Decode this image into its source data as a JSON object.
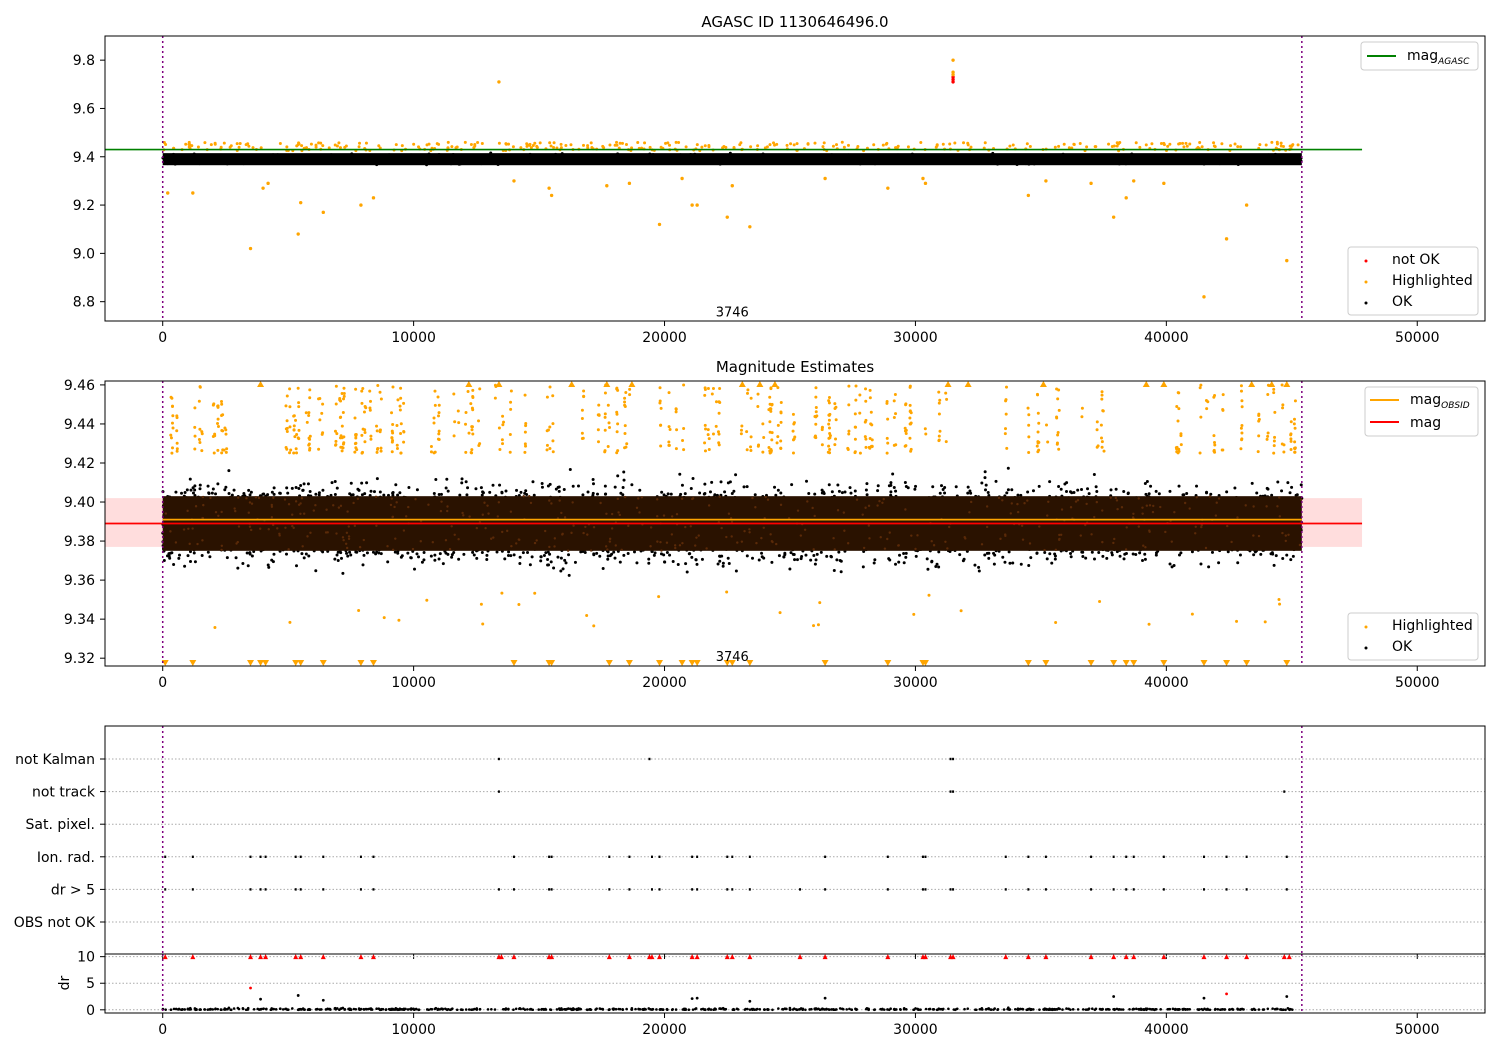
{
  "chart_data": [
    {
      "type": "scatter",
      "title": "AGASC ID 1130646496.0",
      "xlim": [
        -2300,
        52700
      ],
      "ylim": [
        8.72,
        9.9
      ],
      "xticks": [
        0,
        10000,
        20000,
        30000,
        40000,
        50000
      ],
      "yticks": [
        8.8,
        9.0,
        9.2,
        9.4,
        9.6,
        9.8
      ],
      "vlines": [
        0,
        45400
      ],
      "hlines": [
        {
          "name": "mag",
          "sub": "AGASC",
          "y": 9.43,
          "x": [
            -2300,
            47800
          ],
          "color": "#008000"
        }
      ],
      "annotations": [
        {
          "text": "3746",
          "x": 22700,
          "y": 8.76
        }
      ],
      "ok_band": {
        "x": [
          0,
          45400
        ],
        "y": [
          9.365,
          9.415
        ]
      },
      "series": [
        {
          "name": "not OK",
          "color": "#ff0000",
          "points": [
            [
              31500,
              9.71
            ],
            [
              31500,
              9.72
            ],
            [
              31500,
              9.73
            ]
          ]
        },
        {
          "name": "Highlighted",
          "color": "#ffa500",
          "points": [
            [
              13400,
              9.71
            ],
            [
              31500,
              9.8
            ],
            [
              31500,
              9.74
            ],
            [
              31500,
              9.75
            ],
            [
              200,
              9.25
            ],
            [
              1200,
              9.25
            ],
            [
              3500,
              9.02
            ],
            [
              4000,
              9.27
            ],
            [
              4200,
              9.29
            ],
            [
              5400,
              9.08
            ],
            [
              5500,
              9.21
            ],
            [
              6400,
              9.17
            ],
            [
              7900,
              9.2
            ],
            [
              8400,
              9.23
            ],
            [
              14000,
              9.3
            ],
            [
              15400,
              9.27
            ],
            [
              15500,
              9.24
            ],
            [
              17700,
              9.28
            ],
            [
              18600,
              9.29
            ],
            [
              19800,
              9.12
            ],
            [
              20700,
              9.31
            ],
            [
              21100,
              9.2
            ],
            [
              21300,
              9.2
            ],
            [
              22500,
              9.15
            ],
            [
              22700,
              9.28
            ],
            [
              23400,
              9.11
            ],
            [
              26400,
              9.31
            ],
            [
              28900,
              9.27
            ],
            [
              30300,
              9.31
            ],
            [
              30400,
              9.29
            ],
            [
              34500,
              9.24
            ],
            [
              35200,
              9.3
            ],
            [
              37000,
              9.29
            ],
            [
              37900,
              9.15
            ],
            [
              38400,
              9.23
            ],
            [
              38700,
              9.3
            ],
            [
              39900,
              9.29
            ],
            [
              41500,
              8.82
            ],
            [
              42400,
              9.06
            ],
            [
              43200,
              9.2
            ],
            [
              44800,
              8.97
            ]
          ]
        },
        {
          "name": "OK",
          "color": "#000000",
          "points": []
        }
      ],
      "legend": {
        "upper": "upper right",
        "lower": "lower right"
      }
    },
    {
      "type": "scatter",
      "title": "Magnitude Estimates",
      "xlim": [
        -2300,
        52700
      ],
      "ylim": [
        9.316,
        9.462
      ],
      "xticks": [
        0,
        10000,
        20000,
        30000,
        40000,
        50000
      ],
      "yticks": [
        9.32,
        9.34,
        9.36,
        9.38,
        9.4,
        9.42,
        9.44,
        9.46
      ],
      "vlines": [
        0,
        45400
      ],
      "hlines": [
        {
          "name": "mag",
          "sub": "OBSID",
          "y": 9.391,
          "x": [
            0,
            45400
          ],
          "color": "#ffa500"
        },
        {
          "name": "mag",
          "sub": "",
          "y": 9.389,
          "x": [
            -2300,
            47800
          ],
          "color": "#ff0000"
        }
      ],
      "band": {
        "y": [
          9.377,
          9.402
        ],
        "x": [
          -2300,
          47800
        ],
        "color": "#ffdddd"
      },
      "annotations": [
        {
          "text": "3746",
          "x": 22700,
          "y": 9.321
        }
      ],
      "ok_band": {
        "x": [
          0,
          45400
        ],
        "y": [
          9.352,
          9.424
        ],
        "core": [
          9.375,
          9.403
        ]
      },
      "highlight_band": {
        "y": [
          9.425,
          9.46
        ]
      },
      "series": [
        {
          "name": "Highlighted",
          "color": "#ffa500"
        },
        {
          "name": "OK",
          "color": "#000000"
        }
      ],
      "clipped_low_markers_x": [
        100,
        1200,
        3500,
        3900,
        4100,
        5300,
        5500,
        6400,
        7900,
        8400,
        14000,
        15400,
        15500,
        17800,
        18600,
        19800,
        20700,
        21100,
        21300,
        22500,
        22700,
        23400,
        26400,
        28900,
        30300,
        30400,
        34500,
        35200,
        37000,
        37900,
        38400,
        38700,
        39900,
        41500,
        42400,
        43200,
        44800
      ],
      "clipped_high_markers_x": [
        3900,
        12200,
        13400,
        16300,
        17700,
        18700,
        23100,
        23800,
        24400,
        31300,
        32100,
        35100,
        39200,
        39900,
        43400,
        44200,
        44800
      ],
      "legend": {
        "upper": "upper right",
        "lower": "lower right"
      }
    },
    {
      "type": "scatter",
      "xlim": [
        -2300,
        52700
      ],
      "categories": [
        "not Kalman",
        "not track",
        "Sat. pixel.",
        "Ion. rad.",
        "dr > 5",
        "OBS not OK"
      ],
      "xticks": [
        0,
        10000,
        20000,
        30000,
        40000,
        50000
      ],
      "vlines": [
        0,
        45400
      ],
      "flags": {
        "not Kalman": [
          13400,
          19400,
          31400,
          31500
        ],
        "not track": [
          13400,
          31400,
          31500,
          44700
        ],
        "Sat. pixel.": [],
        "Ion. rad.": [
          100,
          1200,
          3500,
          3900,
          4100,
          5300,
          5500,
          6400,
          7900,
          8400,
          14000,
          15400,
          15500,
          17800,
          18600,
          19500,
          19800,
          21100,
          21300,
          22500,
          22700,
          23400,
          26400,
          28900,
          30300,
          30400,
          33600,
          34500,
          35200,
          37000,
          37900,
          38400,
          38700,
          39900,
          41500,
          42400,
          43200,
          44800
        ],
        "dr > 5": [
          100,
          1200,
          3500,
          3900,
          4100,
          5300,
          5500,
          6400,
          7900,
          8400,
          13400,
          14000,
          15400,
          15500,
          17800,
          18600,
          19500,
          19800,
          21100,
          21300,
          22500,
          22700,
          23400,
          25400,
          26400,
          28900,
          30300,
          30400,
          31400,
          31500,
          33600,
          34500,
          35200,
          37000,
          37900,
          38400,
          38700,
          39900,
          41500,
          42400,
          43200,
          44800
        ],
        "OBS not OK": []
      }
    },
    {
      "type": "scatter",
      "ylabel": "dr",
      "xlim": [
        -2300,
        52700
      ],
      "ylim": [
        -0.6,
        10.5
      ],
      "yticks": [
        0,
        5,
        10
      ],
      "xticks": [
        0,
        10000,
        20000,
        30000,
        40000,
        50000
      ],
      "xticklabels": [
        "0",
        "10000",
        "20000",
        "30000",
        "40000",
        "50000"
      ],
      "vlines": [
        0,
        45400
      ],
      "clipped_markers_x": [
        100,
        1200,
        3500,
        3900,
        4100,
        5300,
        5500,
        6400,
        7900,
        8400,
        13400,
        13500,
        14000,
        15400,
        15500,
        17800,
        18600,
        19400,
        19500,
        19800,
        21100,
        21300,
        22500,
        22700,
        23400,
        25400,
        26400,
        28900,
        30300,
        30400,
        31400,
        31500,
        33600,
        34500,
        35200,
        37000,
        37900,
        38400,
        38700,
        39900,
        41500,
        42400,
        43200,
        44700,
        44900
      ],
      "outliers": [
        [
          3500,
          4.1,
          "#ff0000"
        ],
        [
          3900,
          2.0,
          "#000000"
        ],
        [
          5400,
          2.7,
          "#000000"
        ],
        [
          6400,
          1.8,
          "#000000"
        ],
        [
          21100,
          2.1,
          "#000000"
        ],
        [
          21300,
          2.2,
          "#000000"
        ],
        [
          23400,
          1.6,
          "#000000"
        ],
        [
          26400,
          2.2,
          "#000000"
        ],
        [
          37900,
          2.5,
          "#000000"
        ],
        [
          41500,
          2.2,
          "#000000"
        ],
        [
          42400,
          3.0,
          "#ff0000"
        ],
        [
          44800,
          2.5,
          "#000000"
        ]
      ]
    }
  ]
}
